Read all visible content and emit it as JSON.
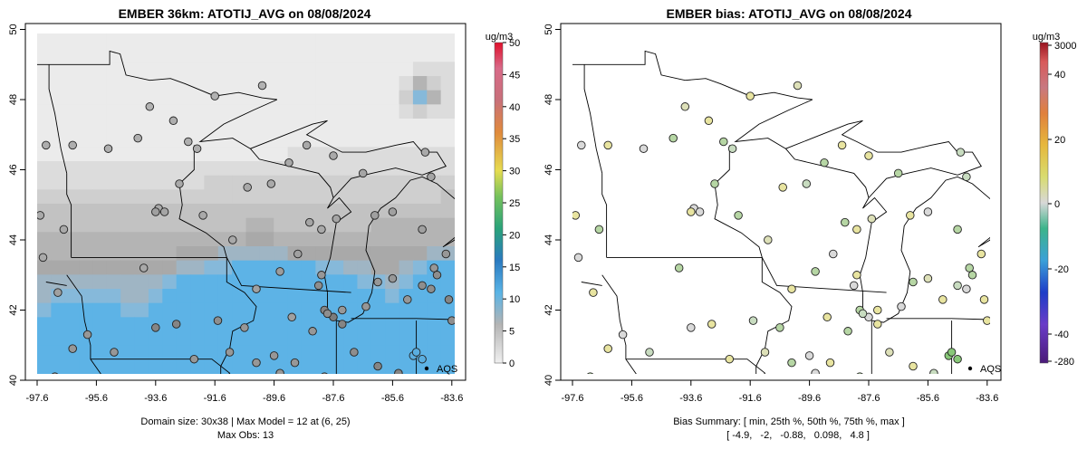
{
  "chart_data": [
    {
      "type": "map",
      "title": "EMBER 36km: ATOTIJ_AVG on 08/08/2024",
      "x_ticks": [
        "-97.6",
        "-95.6",
        "-93.6",
        "-91.6",
        "-89.6",
        "-87.6",
        "-85.6",
        "-83.6"
      ],
      "y_ticks": [
        "40",
        "42",
        "44",
        "46",
        "48",
        "50"
      ],
      "xlim": [
        -98.3,
        -82.8
      ],
      "ylim": [
        40,
        50
      ],
      "colorbar": {
        "unit_label": "ug/m3",
        "ticks": [
          "0",
          "5",
          "10",
          "15",
          "20",
          "25",
          "30",
          "35",
          "40",
          "45",
          "50"
        ],
        "range": [
          0,
          50
        ]
      },
      "annotation": "AQS",
      "footer": [
        "Domain size: 30x38 | Max Model = 12 at (6, 25)",
        "Max Obs: 13"
      ],
      "stations": [
        {
          "lon": -97.3,
          "lat": 46.7,
          "value": 3.5
        },
        {
          "lon": -96.4,
          "lat": 46.7,
          "value": 3.5
        },
        {
          "lon": -95.2,
          "lat": 46.6,
          "value": 3.5
        },
        {
          "lon": -94.2,
          "lat": 46.9,
          "value": 3.5
        },
        {
          "lon": -93.8,
          "lat": 47.8,
          "value": 3
        },
        {
          "lon": -93.0,
          "lat": 47.4,
          "value": 3.5
        },
        {
          "lon": -92.5,
          "lat": 46.8,
          "value": 3.5
        },
        {
          "lon": -92.2,
          "lat": 46.6,
          "value": 3.5
        },
        {
          "lon": -91.6,
          "lat": 48.1,
          "value": 3
        },
        {
          "lon": -90.0,
          "lat": 48.4,
          "value": 3
        },
        {
          "lon": -92.8,
          "lat": 45.6,
          "value": 4
        },
        {
          "lon": -93.5,
          "lat": 44.9,
          "value": 4
        },
        {
          "lon": -93.6,
          "lat": 44.8,
          "value": 5
        },
        {
          "lon": -93.3,
          "lat": 44.8,
          "value": 4.5
        },
        {
          "lon": -92.0,
          "lat": 44.7,
          "value": 4
        },
        {
          "lon": -91.0,
          "lat": 44.0,
          "value": 4
        },
        {
          "lon": -90.5,
          "lat": 45.5,
          "value": 4
        },
        {
          "lon": -89.7,
          "lat": 45.6,
          "value": 4
        },
        {
          "lon": -88.4,
          "lat": 44.5,
          "value": 4.5
        },
        {
          "lon": -88.0,
          "lat": 44.3,
          "value": 4
        },
        {
          "lon": -87.5,
          "lat": 44.6,
          "value": 4.5
        },
        {
          "lon": -89.4,
          "lat": 43.1,
          "value": 5.5
        },
        {
          "lon": -88.8,
          "lat": 43.6,
          "value": 5
        },
        {
          "lon": -88.0,
          "lat": 43.0,
          "value": 6
        },
        {
          "lon": -88.1,
          "lat": 42.7,
          "value": 7
        },
        {
          "lon": -87.9,
          "lat": 42.0,
          "value": 8
        },
        {
          "lon": -87.6,
          "lat": 41.8,
          "value": 9
        },
        {
          "lon": -87.3,
          "lat": 41.6,
          "value": 8
        },
        {
          "lon": -87.8,
          "lat": 41.9,
          "value": 7
        },
        {
          "lon": -88.3,
          "lat": 41.4,
          "value": 6
        },
        {
          "lon": -89.0,
          "lat": 41.8,
          "value": 5
        },
        {
          "lon": -90.2,
          "lat": 42.6,
          "value": 5
        },
        {
          "lon": -90.6,
          "lat": 41.5,
          "value": 6
        },
        {
          "lon": -91.5,
          "lat": 41.7,
          "value": 7
        },
        {
          "lon": -92.9,
          "lat": 41.6,
          "value": 8
        },
        {
          "lon": -93.6,
          "lat": 41.5,
          "value": 8
        },
        {
          "lon": -94.0,
          "lat": 43.2,
          "value": 4
        },
        {
          "lon": -95.9,
          "lat": 41.3,
          "value": 6
        },
        {
          "lon": -96.9,
          "lat": 42.5,
          "value": 5
        },
        {
          "lon": -97.4,
          "lat": 43.5,
          "value": 4
        },
        {
          "lon": -96.7,
          "lat": 44.3,
          "value": 4
        },
        {
          "lon": -97.5,
          "lat": 44.7,
          "value": 4
        },
        {
          "lon": -96.4,
          "lat": 40.9,
          "value": 6
        },
        {
          "lon": -97.0,
          "lat": 40.1,
          "value": 6
        },
        {
          "lon": -95.0,
          "lat": 40.8,
          "value": 6
        },
        {
          "lon": -92.3,
          "lat": 40.6,
          "value": 6
        },
        {
          "lon": -91.1,
          "lat": 40.8,
          "value": 6
        },
        {
          "lon": -90.2,
          "lat": 40.5,
          "value": 6
        },
        {
          "lon": -89.6,
          "lat": 40.7,
          "value": 6
        },
        {
          "lon": -88.9,
          "lat": 40.5,
          "value": 6
        },
        {
          "lon": -89.4,
          "lat": 40.2,
          "value": 6
        },
        {
          "lon": -87.9,
          "lat": 40.1,
          "value": 6
        },
        {
          "lon": -86.9,
          "lat": 40.8,
          "value": 7
        },
        {
          "lon": -86.1,
          "lat": 40.4,
          "value": 8
        },
        {
          "lon": -85.4,
          "lat": 40.2,
          "value": 8
        },
        {
          "lon": -86.2,
          "lat": 40.0,
          "value": 9
        },
        {
          "lon": -85.6,
          "lat": 40.0,
          "value": 9
        },
        {
          "lon": -84.9,
          "lat": 40.7,
          "value": 11
        },
        {
          "lon": -84.6,
          "lat": 40.6,
          "value": 12
        },
        {
          "lon": -84.8,
          "lat": 40.8,
          "value": 13
        },
        {
          "lon": -87.3,
          "lat": 42.0,
          "value": 6
        },
        {
          "lon": -86.5,
          "lat": 42.1,
          "value": 6
        },
        {
          "lon": -86.1,
          "lat": 42.8,
          "value": 6
        },
        {
          "lon": -85.6,
          "lat": 42.9,
          "value": 6
        },
        {
          "lon": -85.1,
          "lat": 42.3,
          "value": 6
        },
        {
          "lon": -84.6,
          "lat": 42.7,
          "value": 7
        },
        {
          "lon": -84.2,
          "lat": 43.2,
          "value": 6
        },
        {
          "lon": -83.8,
          "lat": 43.6,
          "value": 6
        },
        {
          "lon": -83.7,
          "lat": 42.3,
          "value": 8
        },
        {
          "lon": -83.3,
          "lat": 42.4,
          "value": 9
        },
        {
          "lon": -83.1,
          "lat": 42.2,
          "value": 9
        },
        {
          "lon": -83.6,
          "lat": 41.7,
          "value": 7
        },
        {
          "lon": -83.1,
          "lat": 41.7,
          "value": 7
        },
        {
          "lon": -84.6,
          "lat": 44.3,
          "value": 5
        },
        {
          "lon": -85.6,
          "lat": 44.8,
          "value": 5
        },
        {
          "lon": -86.2,
          "lat": 44.7,
          "value": 5
        },
        {
          "lon": -84.3,
          "lat": 45.8,
          "value": 4.5
        },
        {
          "lon": -86.6,
          "lat": 45.9,
          "value": 4.5
        },
        {
          "lon": -87.6,
          "lat": 46.4,
          "value": 4
        },
        {
          "lon": -88.5,
          "lat": 46.7,
          "value": 4
        },
        {
          "lon": -89.1,
          "lat": 46.2,
          "value": 4
        },
        {
          "lon": -84.5,
          "lat": 46.5,
          "value": 4
        },
        {
          "lon": -83.2,
          "lat": 42.9,
          "value": 8
        },
        {
          "lon": -82.9,
          "lat": 43.0,
          "value": 8
        },
        {
          "lon": -84.1,
          "lat": 43.0,
          "value": 7
        },
        {
          "lon": -84.3,
          "lat": 42.6,
          "value": 7
        }
      ]
    },
    {
      "type": "map",
      "title": "EMBER bias: ATOTIJ_AVG on 08/08/2024",
      "x_ticks": [
        "-97.6",
        "-95.6",
        "-93.6",
        "-91.6",
        "-89.6",
        "-87.6",
        "-85.6",
        "-83.6"
      ],
      "y_ticks": [
        "40",
        "42",
        "44",
        "46",
        "48",
        "50"
      ],
      "xlim": [
        -98.3,
        -82.8
      ],
      "ylim": [
        40,
        50
      ],
      "colorbar": {
        "unit_label": "ug/m3",
        "ticks": [
          "3000",
          "40",
          "20",
          "0",
          "-20",
          "-40",
          "-280"
        ]
      },
      "annotation": "AQS",
      "footer": [
        "Bias Summary: [ min, 25th %, 50th %, 75th %, max ]",
        "[ -4.9,   -2,   -0.88,   0.098,   4.8 ]"
      ]
    }
  ]
}
